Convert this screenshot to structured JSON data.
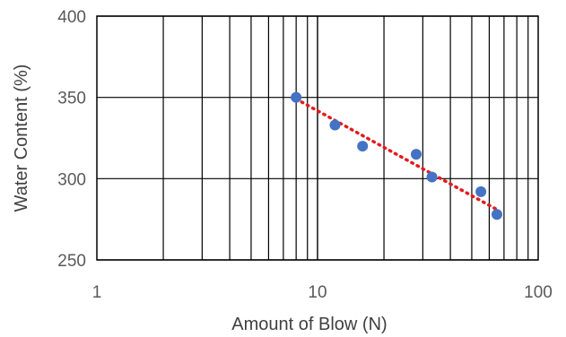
{
  "chart_data": {
    "type": "scatter",
    "xlabel": "Amount of Blow (N)",
    "ylabel": "Water Content (%)",
    "xscale": "log",
    "xlim": [
      1,
      100
    ],
    "ylim": [
      250,
      400
    ],
    "x_ticks": [
      {
        "value": 1,
        "label": "1"
      },
      {
        "value": 10,
        "label": "10"
      },
      {
        "value": 100,
        "label": "100"
      }
    ],
    "y_ticks": [
      {
        "value": 250,
        "label": "250"
      },
      {
        "value": 300,
        "label": "300"
      },
      {
        "value": 350,
        "label": "350"
      },
      {
        "value": 400,
        "label": "400"
      }
    ],
    "grid": true,
    "legend": "none",
    "series": [
      {
        "points": [
          {
            "x": 8,
            "y": 350
          },
          {
            "x": 12,
            "y": 333
          },
          {
            "x": 16,
            "y": 320
          },
          {
            "x": 28,
            "y": 315
          },
          {
            "x": 33,
            "y": 301
          },
          {
            "x": 55,
            "y": 292
          },
          {
            "x": 65,
            "y": 278
          }
        ],
        "color": "#4472C4"
      }
    ],
    "trendline": {
      "type": "logarithmic",
      "from": {
        "x": 8,
        "y": 349
      },
      "to": {
        "x": 65,
        "y": 281
      },
      "style": "dotted",
      "color": "#E41A1C"
    },
    "plot_border_color": "#000000",
    "grid_color": "#000000"
  }
}
